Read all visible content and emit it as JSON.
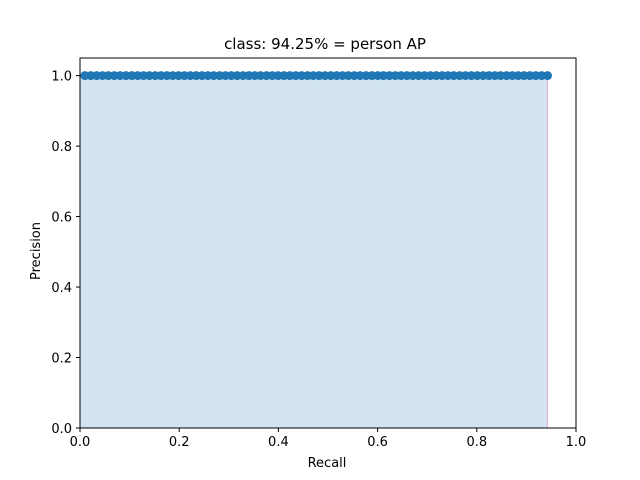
{
  "chart_data": {
    "type": "line",
    "title": "class: 94.25% = person AP",
    "xlabel": "Recall",
    "ylabel": "Precision",
    "xlim": [
      0.0,
      1.0
    ],
    "ylim": [
      0.0,
      1.05
    ],
    "xticks": [
      "0.0",
      "0.2",
      "0.4",
      "0.6",
      "0.8",
      "1.0"
    ],
    "yticks": [
      "0.0",
      "0.2",
      "0.4",
      "0.6",
      "0.8",
      "1.0"
    ],
    "grid": false,
    "legend": "none",
    "series": [
      {
        "line_color": "#1f77b4",
        "marker": "circle",
        "fill_color": "#1f77b4",
        "fill_alpha": 0.2,
        "drop_line_color": "#e377c2",
        "recall_start": 0.01,
        "recall_end": 0.9425,
        "precision": 1.0,
        "num_points": 80
      }
    ]
  }
}
